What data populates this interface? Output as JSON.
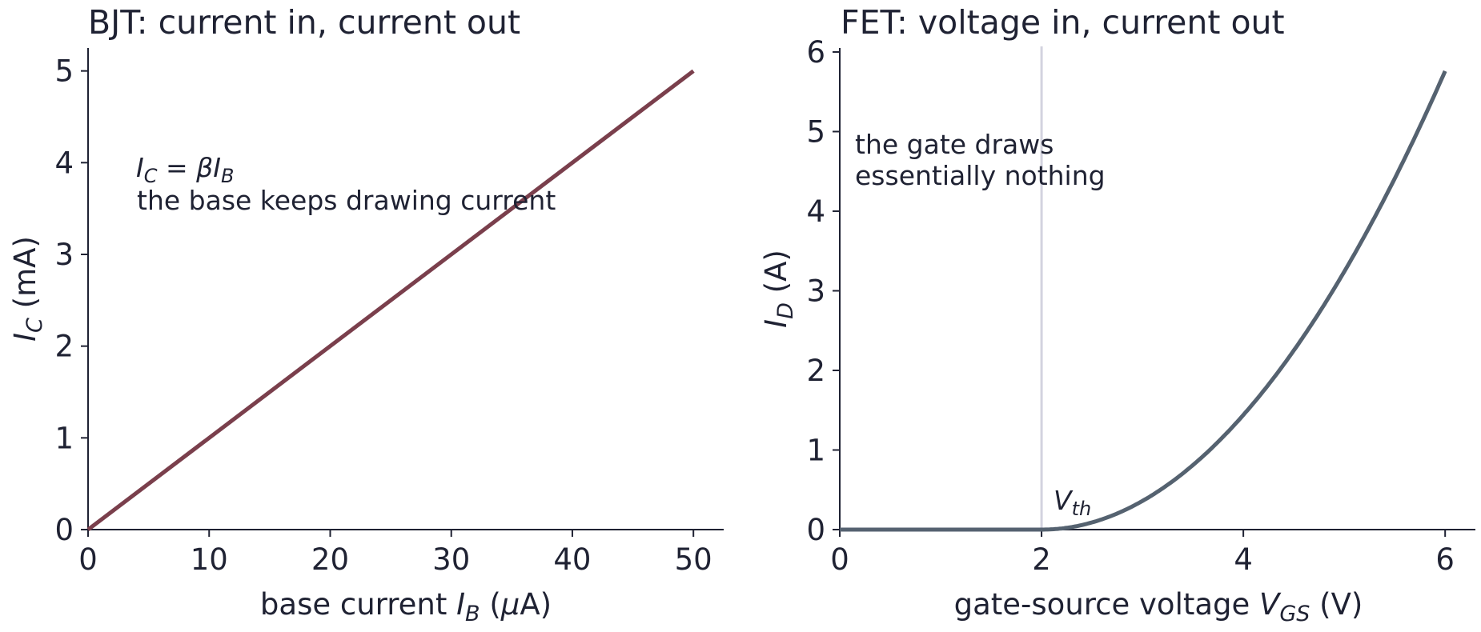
{
  "chart_data": [
    {
      "type": "line",
      "title": "BJT: current in, current out",
      "xlabel": "base current I_B (μA)",
      "ylabel": "I_C (mA)",
      "xlim": [
        0,
        52.5
      ],
      "ylim": [
        0,
        5.25
      ],
      "x_ticks": [
        "0",
        "10",
        "20",
        "30",
        "40",
        "50"
      ],
      "y_ticks": [
        "0",
        "1",
        "2",
        "3",
        "4",
        "5"
      ],
      "series": [
        {
          "x": [
            0,
            50
          ],
          "y": [
            0,
            5
          ],
          "color": "#7a3f4c"
        }
      ],
      "annotations": [
        "I_C = βI_B",
        "the base keeps drawing current"
      ]
    },
    {
      "type": "line",
      "title": "FET: voltage in, current out",
      "xlabel": "gate-source voltage V_GS (V)",
      "ylabel": "I_D (A)",
      "xlim": [
        0,
        6.3
      ],
      "ylim": [
        0,
        6.05
      ],
      "x_ticks": [
        "0",
        "2",
        "4",
        "6"
      ],
      "y_ticks": [
        "0",
        "1",
        "2",
        "3",
        "4",
        "5",
        "6"
      ],
      "threshold": {
        "x": 2,
        "label": "V_th",
        "color": "#d3d3df"
      },
      "series": [
        {
          "x": [
            0,
            0.5,
            1,
            1.5,
            2,
            2.5,
            3,
            3.5,
            4,
            4.5,
            5,
            5.5,
            6
          ],
          "y": [
            0,
            0,
            0,
            0,
            0,
            0.09,
            0.36,
            0.81,
            1.44,
            2.25,
            3.24,
            4.41,
            5.76
          ],
          "color": "#556270"
        }
      ],
      "annotations": [
        "the gate draws",
        "essentially nothing"
      ]
    }
  ]
}
